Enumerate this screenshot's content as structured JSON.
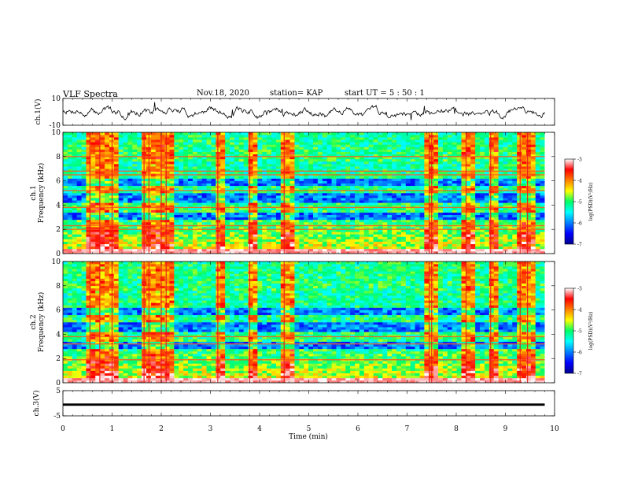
{
  "header": {
    "title": "VLF Spectra",
    "date": "Nov.18, 2020",
    "station": "station= KAP",
    "start_ut": "start  UT =  5 : 50 : 1"
  },
  "chart_data": [
    {
      "type": "line",
      "ylabel": "ch.1(V)",
      "ylim": [
        -10,
        10
      ],
      "y_ticks": [
        "10",
        "-10"
      ],
      "xlim": [
        0,
        10
      ],
      "style": {
        "color": "#000000"
      },
      "note": "noisy waveform oscillating roughly between -6 and 6 V"
    },
    {
      "type": "heatmap",
      "ylabel": "ch.1\nFrequency (kHz)",
      "ylim": [
        0,
        10
      ],
      "y_ticks": [
        "0",
        "2",
        "4",
        "6",
        "8",
        "10"
      ],
      "xlim": [
        0,
        10
      ],
      "colorbar": {
        "label": "log(PSD)(V²/Hz)",
        "range": [
          -7,
          -3
        ],
        "ticks": [
          "-3",
          "-4",
          "-5",
          "-6",
          "-7"
        ]
      },
      "dominant_bands_khz": {
        "strong_blue": [
          [
            2.9,
            3.4
          ],
          [
            4.3,
            5.0
          ],
          [
            5.7,
            6.3
          ]
        ]
      },
      "tone_lines_khz": [
        8.0,
        6.8,
        6.5,
        5.2,
        3.8,
        2.3,
        2.0
      ],
      "strong_events_min": [
        0.55,
        0.75,
        1.0,
        1.65,
        1.75,
        2.0,
        2.1,
        3.15,
        3.8,
        4.5,
        7.45,
        7.5,
        8.2,
        8.7,
        9.3,
        9.45
      ]
    },
    {
      "type": "heatmap",
      "ylabel": "ch.2\nFrequency (kHz)",
      "ylim": [
        0,
        10
      ],
      "y_ticks": [
        "0",
        "2",
        "4",
        "6",
        "8",
        "10"
      ],
      "xlim": [
        0,
        10
      ],
      "colorbar": {
        "label": "log(PSD)(V²/Hz)",
        "range": [
          -7,
          -3
        ],
        "ticks": [
          "-3",
          "-4",
          "-5",
          "-6",
          "-7"
        ]
      },
      "dominant_bands_khz": {
        "strong_blue": [
          [
            2.9,
            3.4
          ],
          [
            4.3,
            5.0
          ],
          [
            5.7,
            6.3
          ]
        ]
      },
      "tone_lines_khz": [
        3.8,
        3.2,
        1.9
      ],
      "strong_events_min": [
        0.55,
        0.75,
        1.0,
        1.65,
        1.75,
        2.0,
        2.1,
        3.15,
        3.8,
        4.5,
        7.45,
        7.5,
        8.2,
        8.7,
        9.3,
        9.45
      ]
    },
    {
      "type": "line",
      "ylabel": "ch.3(V)",
      "ylim": [
        -5,
        5
      ],
      "y_ticks": [
        "5",
        "-5"
      ],
      "xlim": [
        0,
        10
      ],
      "style": {
        "color": "#000000"
      },
      "note": "thick flat black band near -0.5 V"
    }
  ],
  "x_axis": {
    "label": "Time  (min)",
    "ticks": [
      "0",
      "1",
      "2",
      "3",
      "4",
      "5",
      "6",
      "7",
      "8",
      "9",
      "10"
    ]
  }
}
